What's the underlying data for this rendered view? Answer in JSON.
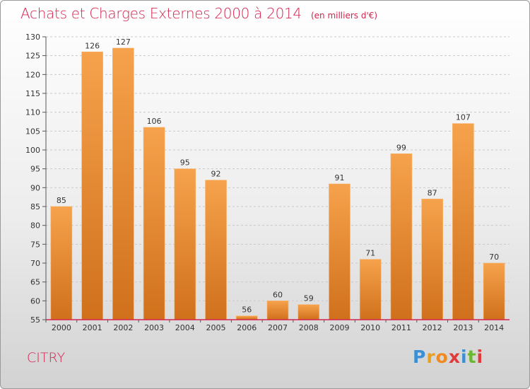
{
  "header": {
    "title": "Achats et Charges Externes 2000 à 2014",
    "subtitle": "(en milliers d'€)"
  },
  "footer": {
    "commune": "CITRY",
    "brand": [
      "P",
      "r",
      "o",
      "x",
      "i",
      "t",
      "i"
    ],
    "brand_colors": [
      "#3a8fd6",
      "#e8a020",
      "#f08a20",
      "#e03a3a",
      "#3a8fd6",
      "#6ab830",
      "#e03a3a"
    ]
  },
  "colors": {
    "accent": "#d4244e",
    "bar_top": "#f6a24c",
    "bar_bottom": "#d0701c",
    "baseline": "#d4244e"
  },
  "chart_data": {
    "type": "bar",
    "title": "Achats et Charges Externes 2000 à 2014",
    "subtitle": "(en milliers d'€)",
    "categories": [
      "2000",
      "2001",
      "2002",
      "2003",
      "2004",
      "2005",
      "2006",
      "2007",
      "2008",
      "2009",
      "2010",
      "2011",
      "2012",
      "2013",
      "2014"
    ],
    "values": [
      85,
      126,
      127,
      106,
      95,
      92,
      56,
      60,
      59,
      91,
      71,
      99,
      87,
      107,
      70
    ],
    "ylim": [
      55,
      130
    ],
    "yticks": [
      55,
      60,
      65,
      70,
      75,
      80,
      85,
      90,
      95,
      100,
      105,
      110,
      115,
      120,
      125,
      130
    ],
    "grid": true,
    "legend": "none"
  }
}
